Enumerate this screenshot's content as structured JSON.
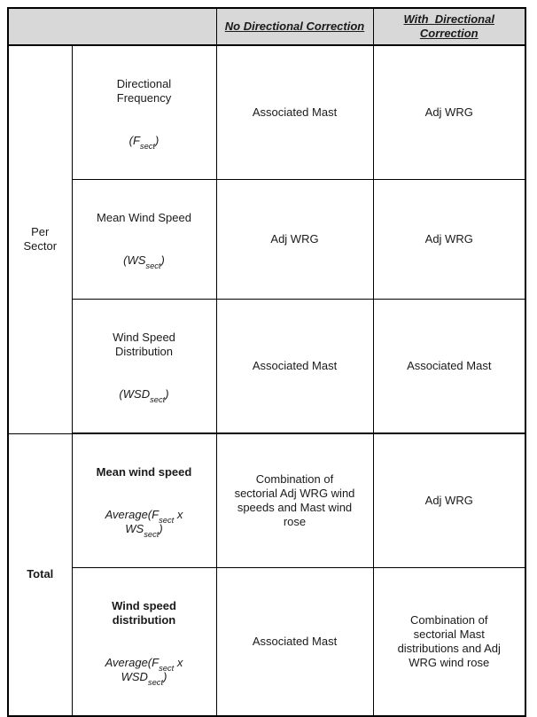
{
  "colors": {
    "header_bg": "#d8d8d8",
    "border": "#000000",
    "text": "#1a1a1a"
  },
  "table": {
    "corner_label": "",
    "column_headers": {
      "no_correction": "No Directional Correction",
      "with_correction": "With  Directional\nCorrection"
    },
    "row_groups": [
      {
        "label": "Per\nSector",
        "rows": [
          {
            "name": "Directional\nFrequency",
            "formula": [
              {
                "t": "(F"
              },
              {
                "sub": "sect"
              },
              {
                "t": ")"
              }
            ],
            "no_correction": "Associated Mast",
            "with_correction": "Adj WRG"
          },
          {
            "name": "Mean Wind Speed",
            "formula": [
              {
                "t": "(WS"
              },
              {
                "sub": "sect"
              },
              {
                "t": ")"
              }
            ],
            "no_correction": "Adj WRG",
            "with_correction": "Adj WRG"
          },
          {
            "name": "Wind Speed\nDistribution",
            "formula": [
              {
                "t": "(WSD"
              },
              {
                "sub": "sect"
              },
              {
                "t": ")"
              }
            ],
            "no_correction": "Associated Mast",
            "with_correction": "Associated Mast"
          }
        ]
      },
      {
        "label": "Total",
        "rows": [
          {
            "name": "Mean wind speed",
            "formula": [
              {
                "t": "Average(F"
              },
              {
                "sub": "sect"
              },
              {
                "t": " x\nWS"
              },
              {
                "sub": "sect"
              },
              {
                "t": ")"
              }
            ],
            "no_correction": "Combination of\nsectorial Adj WRG wind\nspeeds and Mast wind\nrose",
            "with_correction": "Adj WRG"
          },
          {
            "name": "Wind speed\ndistribution",
            "formula": [
              {
                "t": "Average(F"
              },
              {
                "sub": "sect"
              },
              {
                "t": " x\nWSD"
              },
              {
                "sub": "sect"
              },
              {
                "t": ")"
              }
            ],
            "no_correction": "Associated Mast",
            "with_correction": "Combination of\nsectorial Mast\ndistributions and Adj\nWRG wind rose"
          }
        ]
      }
    ]
  }
}
